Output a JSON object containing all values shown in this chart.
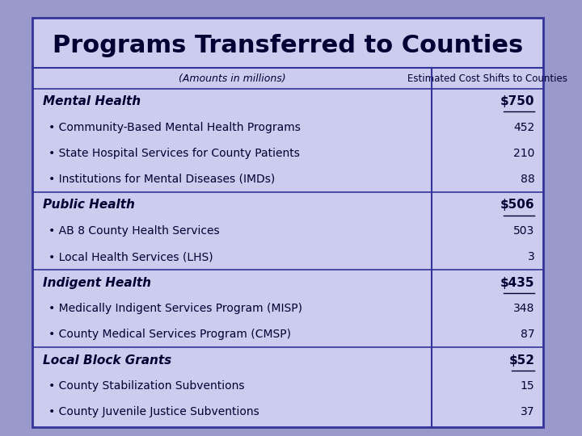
{
  "title": "Programs Transferred to Counties",
  "subtitle_left": "(Amounts in millions)",
  "subtitle_right": "Estimated Cost Shifts to Counties",
  "background_outer": "#9999cc",
  "background_inner": "#aaaadd",
  "table_bg": "#ccccee",
  "border_color": "#333399",
  "sections": [
    {
      "header": "Mental Health",
      "header_value": "$750",
      "items": [
        {
          "label": "• Community-Based Mental Health Programs",
          "value": "452"
        },
        {
          "label": "• State Hospital Services for County Patients",
          "value": "210"
        },
        {
          "label": "• Institutions for Mental Diseases (IMDs)",
          "value": "88"
        }
      ]
    },
    {
      "header": "Public Health",
      "header_value": "$506",
      "items": [
        {
          "label": "• AB 8 County Health Services",
          "value": "503"
        },
        {
          "label": "• Local Health Services (LHS)",
          "value": "3"
        }
      ]
    },
    {
      "header": "Indigent Health",
      "header_value": "$435",
      "items": [
        {
          "label": "• Medically Indigent Services Program (MISP)",
          "value": "348"
        },
        {
          "label": "• County Medical Services Program (CMSP)",
          "value": "87"
        }
      ]
    },
    {
      "header": "Local Block Grants",
      "header_value": "$52",
      "items": [
        {
          "label": "• County Stabilization Subventions",
          "value": "15"
        },
        {
          "label": "• County Juvenile Justice Subventions",
          "value": "37"
        }
      ]
    }
  ],
  "text_color": "#000033",
  "header_fontsize": 11,
  "item_fontsize": 10,
  "title_fontsize": 22,
  "subtitle_fontsize": 9
}
